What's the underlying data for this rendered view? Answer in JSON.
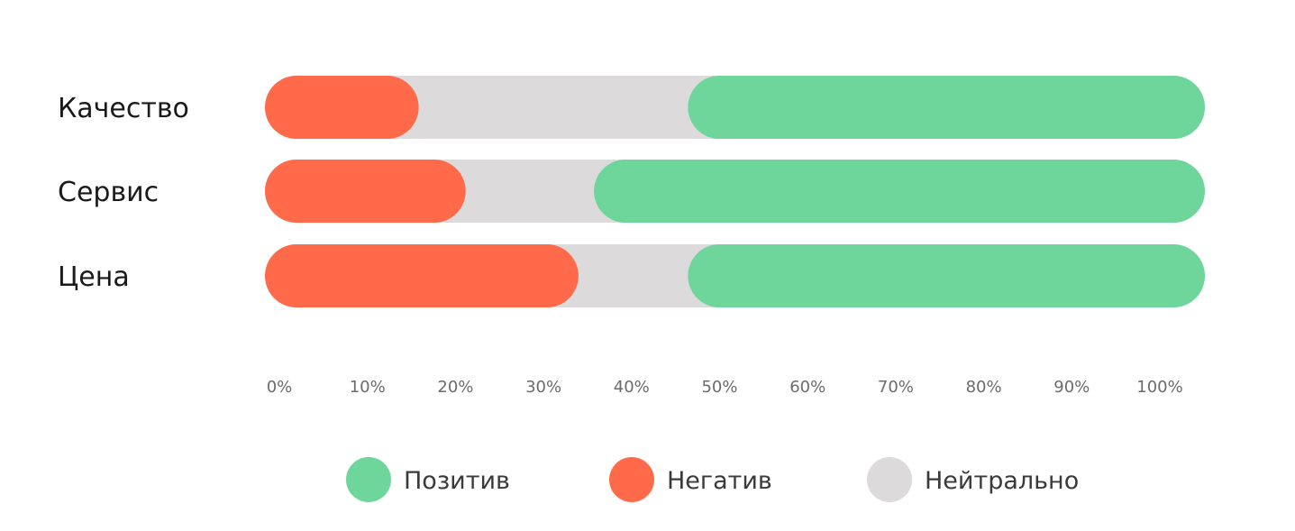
{
  "chart_data": {
    "type": "bar",
    "orientation": "horizontal",
    "stacked": true,
    "categories": [
      "Качество",
      "Сервис",
      "Цена"
    ],
    "series": [
      {
        "name": "Позитив",
        "color": "#6fd69b",
        "values": [
          55,
          65,
          55
        ]
      },
      {
        "name": "Негатив",
        "color": "#ff6b4a",
        "values": [
          13,
          18,
          30
        ]
      },
      {
        "name": "Нейтрально",
        "color": "#dcdadb",
        "values": [
          32,
          17,
          15
        ]
      }
    ],
    "x_ticks": [
      "0%",
      "10%",
      "20%",
      "30%",
      "40%",
      "50%",
      "60%",
      "70%",
      "80%",
      "90%",
      "100%"
    ],
    "xlim": [
      0,
      100
    ],
    "grid": false,
    "legend_position": "bottom",
    "title": "",
    "xlabel": "",
    "ylabel": ""
  }
}
